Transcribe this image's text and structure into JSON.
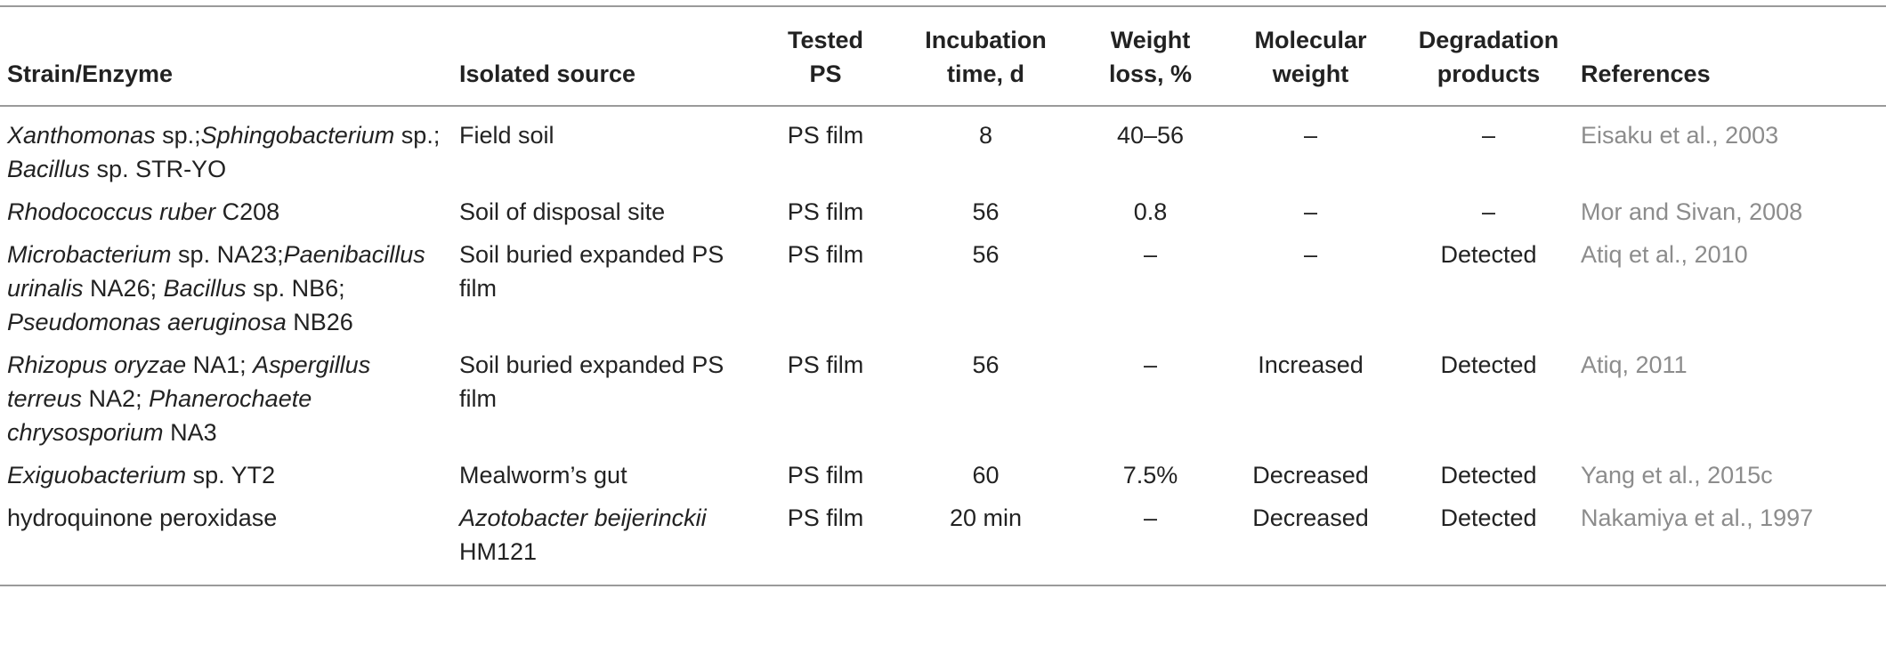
{
  "table": {
    "headers": {
      "strain": "Strain/Enzyme",
      "source": "Isolated source",
      "tested_ps": [
        "Tested",
        "PS"
      ],
      "incubation": [
        "Incubation",
        "time, d"
      ],
      "weight_loss": [
        "Weight",
        "loss, %"
      ],
      "mol_weight": [
        "Molecular",
        "weight"
      ],
      "products": [
        "Degradation",
        "products"
      ],
      "references": "References"
    },
    "rows": [
      {
        "strain": [
          [
            "Xanthomonas",
            " sp.;"
          ],
          [
            "Sphingobacterium",
            " sp.; "
          ],
          [
            "Bacillus",
            " sp. STR-YO"
          ]
        ],
        "source": [
          [
            "",
            "Field soil"
          ]
        ],
        "tested_ps": "PS film",
        "incubation": "8",
        "weight_loss": "40–56",
        "mol_weight": "–",
        "products": "–",
        "reference": "Eisaku et al., 2003"
      },
      {
        "strain": [
          [
            "Rhodococcus ruber",
            " C208"
          ]
        ],
        "source": [
          [
            "",
            "Soil of disposal site"
          ]
        ],
        "tested_ps": "PS film",
        "incubation": "56",
        "weight_loss": "0.8",
        "mol_weight": "–",
        "products": "–",
        "reference": "Mor and Sivan, 2008"
      },
      {
        "strain": [
          [
            "Microbacterium",
            " sp. NA23;"
          ],
          [
            "Paenibacillus urinalis",
            " NA26; "
          ],
          [
            "Bacillus",
            " sp. NB6; "
          ],
          [
            "Pseudomonas aeruginosa",
            " NB26"
          ]
        ],
        "source": [
          [
            "",
            "Soil buried expanded PS film"
          ]
        ],
        "tested_ps": "PS film",
        "incubation": "56",
        "weight_loss": "–",
        "mol_weight": "–",
        "products": "Detected",
        "reference": "Atiq et al., 2010"
      },
      {
        "strain": [
          [
            "Rhizopus oryzae",
            " NA1; "
          ],
          [
            "Aspergillus terreus",
            " NA2; "
          ],
          [
            "Phanerochaete chrysosporium",
            " NA3"
          ]
        ],
        "source": [
          [
            "",
            "Soil buried expanded PS film"
          ]
        ],
        "tested_ps": "PS film",
        "incubation": "56",
        "weight_loss": "–",
        "mol_weight": "Increased",
        "products": "Detected",
        "reference": "Atiq, 2011"
      },
      {
        "strain": [
          [
            "Exiguobacterium",
            " sp. YT2"
          ]
        ],
        "source": [
          [
            "",
            "Mealworm’s gut"
          ]
        ],
        "tested_ps": "PS film",
        "incubation": "60",
        "weight_loss": "7.5%",
        "mol_weight": "Decreased",
        "products": "Detected",
        "reference": "Yang et al., 2015c"
      },
      {
        "strain": [
          [
            "",
            "hydroquinone peroxidase"
          ]
        ],
        "source": [
          [
            "Azotobacter beijerinckii",
            " HM121"
          ]
        ],
        "tested_ps": "PS film",
        "incubation": "20 min",
        "weight_loss": "–",
        "mol_weight": "Decreased",
        "products": "Detected",
        "reference": "Nakamiya et al., 1997"
      }
    ]
  }
}
